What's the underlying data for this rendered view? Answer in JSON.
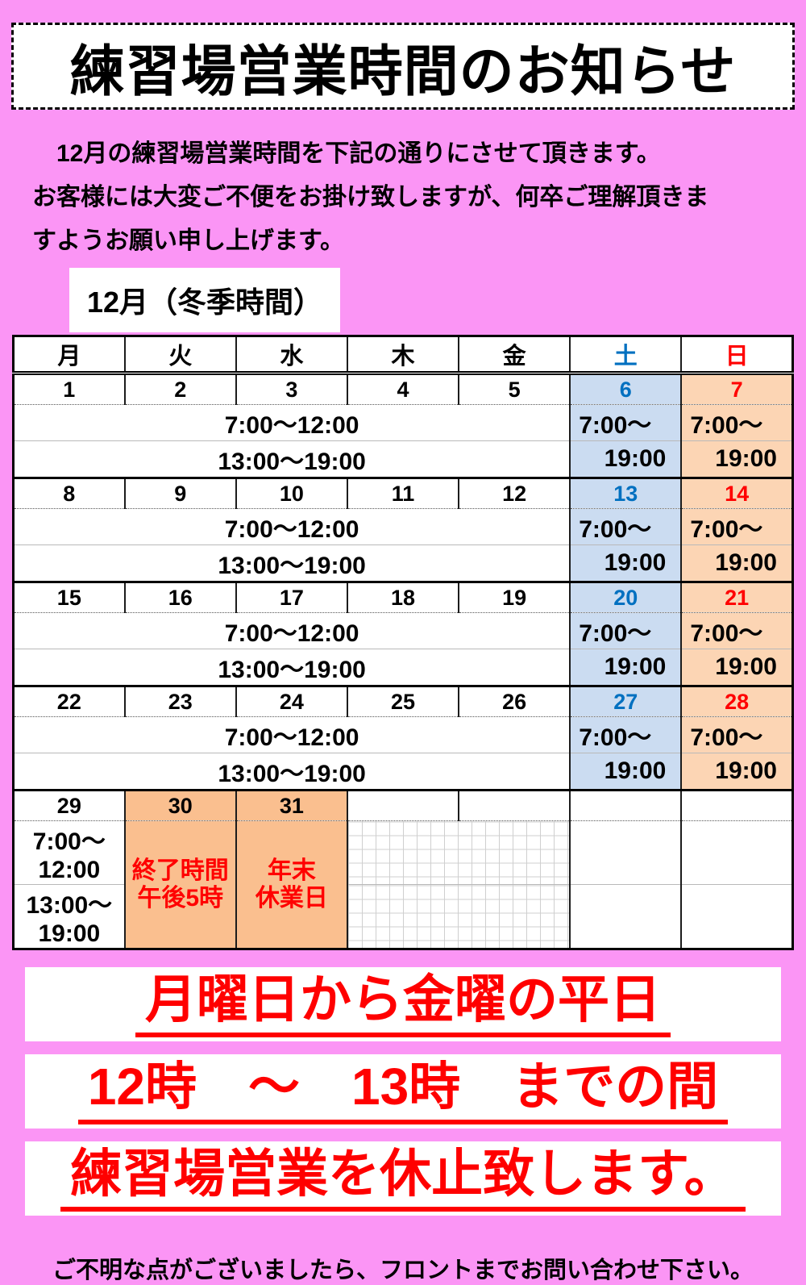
{
  "title": "練習場営業時間のお知らせ",
  "intro": {
    "line1": "　12月の練習場営業時間を下記の通りにさせて頂きます。",
    "line2": "お客様には大変ご不便をお掛け致しますが、何卒ご理解頂きま",
    "line3": "すようお願い申し上げます。"
  },
  "calendar": {
    "month_label": "12月（冬季時間）",
    "headers": [
      "月",
      "火",
      "水",
      "木",
      "金",
      "土",
      "日"
    ],
    "weekday_am": "7:00～12:00",
    "weekday_pm": "13:00～19:00",
    "weekend_line1": "7:00～",
    "weekend_line2": "19:00",
    "weeks": [
      {
        "dates": [
          "1",
          "2",
          "3",
          "4",
          "5",
          "6",
          "7"
        ]
      },
      {
        "dates": [
          "8",
          "9",
          "10",
          "11",
          "12",
          "13",
          "14"
        ]
      },
      {
        "dates": [
          "15",
          "16",
          "17",
          "18",
          "19",
          "20",
          "21"
        ]
      },
      {
        "dates": [
          "22",
          "23",
          "24",
          "25",
          "26",
          "27",
          "28"
        ]
      }
    ],
    "last_week": {
      "dates": [
        "29",
        "30",
        "31",
        "",
        "",
        "",
        ""
      ],
      "mon_am": "7:00～12:00",
      "mon_pm": "13:00～19:00",
      "day30_note_line1": "終了時間",
      "day30_note_line2": "午後5時",
      "day31_note_line1": "年末",
      "day31_note_line2": "休業日"
    }
  },
  "banners": {
    "line1": "月曜日から金曜の平日",
    "line2": "12時　～　13時　までの間",
    "line3": "練習場営業を休止致します。"
  },
  "footer": "ご不明な点がございましたら、フロントまでお問い合わせ下さい。",
  "colors": {
    "page_background": "#FB95F5",
    "saturday_fill": "#CBDCF1",
    "sunday_fill": "#FCD5B4",
    "closing_fill": "#FABF8F",
    "saturday_text": "#0070C0",
    "sunday_text": "#FF0000",
    "alert_red": "#FF0000"
  }
}
